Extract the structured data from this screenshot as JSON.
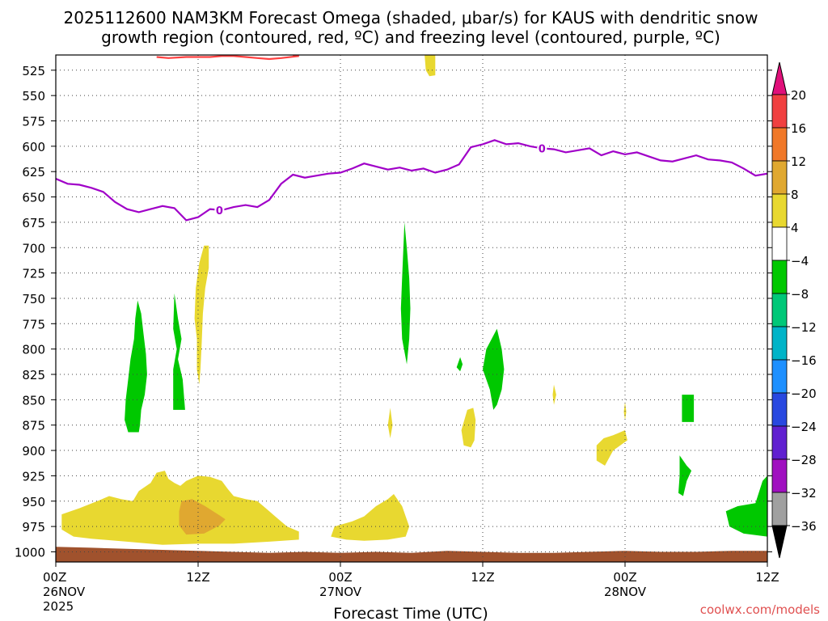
{
  "chart_data": {
    "type": "heatmap",
    "title_line1": "2025112600 NAM3KM Forecast Omega (shaded, μbar/s) for KAUS with dendritic snow",
    "title_line2": "growth region (contoured, red, ºC) and freezing level (contoured, purple, ºC)",
    "xlabel": "Forecast Time (UTC)",
    "credit": "coolwx.com/models",
    "xlim": [
      0,
      60
    ],
    "ylim": [
      510,
      1010
    ],
    "y_ticks": [
      525,
      550,
      575,
      600,
      625,
      650,
      675,
      700,
      725,
      750,
      775,
      800,
      825,
      850,
      875,
      900,
      925,
      950,
      975,
      1000
    ],
    "x_ticks": [
      {
        "x": 0,
        "lines": [
          "00Z",
          "26NOV",
          "2025"
        ]
      },
      {
        "x": 12,
        "lines": [
          "12Z"
        ]
      },
      {
        "x": 24,
        "lines": [
          "00Z",
          "27NOV"
        ]
      },
      {
        "x": 36,
        "lines": [
          "12Z"
        ]
      },
      {
        "x": 48,
        "lines": [
          "00Z",
          "28NOV"
        ]
      },
      {
        "x": 60,
        "lines": [
          "12Z"
        ]
      }
    ],
    "colorbar": {
      "labels": [
        "20",
        "16",
        "12",
        "8",
        "4",
        "−4",
        "−8",
        "−12",
        "−16",
        "−20",
        "−24",
        "−28",
        "−32",
        "−36"
      ],
      "bins": [
        {
          "range": "16 to 20",
          "color": "#f04040"
        },
        {
          "range": "12 to 16",
          "color": "#f07828"
        },
        {
          "range": "8 to 12",
          "color": "#e0a830"
        },
        {
          "range": "4 to 8",
          "color": "#e8d830"
        },
        {
          "range": "-4 to 4",
          "color": "#ffffff"
        },
        {
          "range": "-8 to -4",
          "color": "#00c800"
        },
        {
          "range": "-12 to -8",
          "color": "#00c878"
        },
        {
          "range": "-16 to -12",
          "color": "#00b4c8"
        },
        {
          "range": "-20 to -16",
          "color": "#1e90ff"
        },
        {
          "range": "-24 to -20",
          "color": "#2848e0"
        },
        {
          "range": "-28 to -24",
          "color": "#6020d0"
        },
        {
          "range": "-32 to -28",
          "color": "#a010c0"
        },
        {
          "range": "-36 to -32",
          "color": "#a0a0a0"
        }
      ],
      "over_color": "#e0107a",
      "under_color": "#000000"
    },
    "freezing_level": {
      "color": "#a000c8",
      "label": "0",
      "label_points": [
        [
          13.8,
          663
        ],
        [
          41.0,
          602
        ]
      ],
      "points": [
        [
          0,
          632
        ],
        [
          1,
          637
        ],
        [
          2,
          638
        ],
        [
          3,
          641
        ],
        [
          4,
          645
        ],
        [
          5,
          655
        ],
        [
          6,
          662
        ],
        [
          7,
          665
        ],
        [
          8,
          662
        ],
        [
          9,
          659
        ],
        [
          10,
          661
        ],
        [
          11,
          673
        ],
        [
          12,
          670
        ],
        [
          13,
          662
        ],
        [
          14,
          663
        ],
        [
          15,
          660
        ],
        [
          16,
          658
        ],
        [
          17,
          660
        ],
        [
          18,
          653
        ],
        [
          19,
          637
        ],
        [
          20,
          628
        ],
        [
          21,
          631
        ],
        [
          22,
          629
        ],
        [
          23,
          627
        ],
        [
          24,
          626
        ],
        [
          25,
          622
        ],
        [
          26,
          617
        ],
        [
          27,
          620
        ],
        [
          28,
          623
        ],
        [
          29,
          621
        ],
        [
          30,
          624
        ],
        [
          31,
          622
        ],
        [
          32,
          626
        ],
        [
          33,
          623
        ],
        [
          34,
          618
        ],
        [
          35,
          601
        ],
        [
          36,
          598
        ],
        [
          37,
          594
        ],
        [
          38,
          598
        ],
        [
          39,
          597
        ],
        [
          40,
          600
        ],
        [
          41,
          602
        ],
        [
          42,
          603
        ],
        [
          43,
          606
        ],
        [
          44,
          604
        ],
        [
          45,
          602
        ],
        [
          46,
          609
        ],
        [
          47,
          605
        ],
        [
          48,
          608
        ],
        [
          49,
          606
        ],
        [
          50,
          610
        ],
        [
          51,
          614
        ],
        [
          52,
          615
        ],
        [
          53,
          612
        ],
        [
          54,
          609
        ],
        [
          55,
          613
        ],
        [
          56,
          614
        ],
        [
          57,
          616
        ],
        [
          58,
          622
        ],
        [
          59,
          629
        ],
        [
          60,
          627
        ]
      ]
    },
    "dgz_contour": {
      "color": "#ff4040",
      "points": [
        [
          8.5,
          512
        ],
        [
          9.5,
          513
        ],
        [
          11,
          512
        ],
        [
          13,
          512
        ],
        [
          14,
          511
        ],
        [
          15,
          511
        ],
        [
          16,
          512
        ],
        [
          17,
          513
        ],
        [
          18,
          514
        ],
        [
          19,
          513
        ],
        [
          20.5,
          511
        ],
        [
          20,
          510
        ]
      ]
    },
    "omega_regions": [
      {
        "color": "#e8d830",
        "points": [
          [
            0.5,
            963
          ],
          [
            2,
            957
          ],
          [
            3.5,
            950
          ],
          [
            4.5,
            945
          ],
          [
            5.5,
            948
          ],
          [
            6.5,
            950
          ],
          [
            7,
            940
          ],
          [
            8,
            932
          ],
          [
            8.5,
            922
          ],
          [
            9.2,
            920
          ],
          [
            9.5,
            928
          ],
          [
            10,
            932
          ],
          [
            10.5,
            935
          ],
          [
            11,
            930
          ],
          [
            12,
            925
          ],
          [
            13,
            926
          ],
          [
            14,
            930
          ],
          [
            14.5,
            938
          ],
          [
            15,
            945
          ],
          [
            16,
            948
          ],
          [
            17,
            950
          ],
          [
            17.5,
            955
          ],
          [
            18,
            960
          ],
          [
            18.5,
            965
          ],
          [
            19.5,
            975
          ],
          [
            20.5,
            980
          ],
          [
            20.5,
            988
          ],
          [
            18,
            990
          ],
          [
            15,
            992
          ],
          [
            12,
            992
          ],
          [
            9,
            993
          ],
          [
            6,
            990
          ],
          [
            3,
            987
          ],
          [
            1.5,
            985
          ],
          [
            0.5,
            978
          ]
        ]
      },
      {
        "color": "#e0a830",
        "points": [
          [
            10.6,
            950
          ],
          [
            11.5,
            948
          ],
          [
            12.6,
            955
          ],
          [
            13.8,
            964
          ],
          [
            14.3,
            968
          ],
          [
            13.8,
            974
          ],
          [
            12.5,
            982
          ],
          [
            11,
            983
          ],
          [
            10.4,
            974
          ],
          [
            10.4,
            960
          ]
        ]
      },
      {
        "color": "#e8d830",
        "points": [
          [
            23.5,
            975
          ],
          [
            25,
            970
          ],
          [
            26,
            965
          ],
          [
            27,
            955
          ],
          [
            28,
            948
          ],
          [
            28.5,
            943
          ],
          [
            29.2,
            955
          ],
          [
            29.5,
            965
          ],
          [
            29.8,
            975
          ],
          [
            29.5,
            985
          ],
          [
            28,
            988
          ],
          [
            26,
            989
          ],
          [
            24.5,
            988
          ],
          [
            23.2,
            985
          ]
        ]
      },
      {
        "color": "#e8d830",
        "points": [
          [
            12.5,
            698
          ],
          [
            12.9,
            698
          ],
          [
            12.9,
            720
          ],
          [
            12.6,
            740
          ],
          [
            12.4,
            765
          ],
          [
            12.3,
            795
          ],
          [
            12.2,
            820
          ],
          [
            12.1,
            835
          ],
          [
            11.9,
            820
          ],
          [
            11.9,
            790
          ],
          [
            11.7,
            770
          ],
          [
            11.8,
            740
          ],
          [
            12.1,
            715
          ]
        ]
      },
      {
        "color": "#00c800",
        "points": [
          [
            6.9,
            752
          ],
          [
            7.2,
            765
          ],
          [
            7.4,
            785
          ],
          [
            7.6,
            805
          ],
          [
            7.7,
            825
          ],
          [
            7.5,
            845
          ],
          [
            7.2,
            860
          ],
          [
            7.1,
            875
          ],
          [
            7.0,
            882
          ],
          [
            6.1,
            882
          ],
          [
            5.8,
            870
          ],
          [
            5.9,
            850
          ],
          [
            6.1,
            830
          ],
          [
            6.3,
            810
          ],
          [
            6.6,
            790
          ],
          [
            6.7,
            770
          ]
        ]
      },
      {
        "color": "#00c800",
        "points": [
          [
            10.0,
            745
          ],
          [
            10.3,
            770
          ],
          [
            10.6,
            790
          ],
          [
            10.3,
            810
          ],
          [
            10.7,
            830
          ],
          [
            10.9,
            860
          ],
          [
            9.9,
            860
          ],
          [
            9.9,
            820
          ],
          [
            10.2,
            800
          ],
          [
            9.9,
            780
          ]
        ]
      },
      {
        "color": "#00c800",
        "points": [
          [
            29.4,
            675
          ],
          [
            29.6,
            700
          ],
          [
            29.8,
            730
          ],
          [
            29.9,
            760
          ],
          [
            29.8,
            790
          ],
          [
            29.6,
            815
          ],
          [
            29.2,
            790
          ],
          [
            29.1,
            760
          ],
          [
            29.2,
            730
          ]
        ]
      },
      {
        "color": "#00c800",
        "points": [
          [
            37.2,
            780
          ],
          [
            37.6,
            800
          ],
          [
            37.8,
            820
          ],
          [
            37.6,
            840
          ],
          [
            37.2,
            855
          ],
          [
            36.9,
            860
          ],
          [
            36.6,
            840
          ],
          [
            36.0,
            820
          ],
          [
            36.3,
            800
          ]
        ]
      },
      {
        "color": "#00c800",
        "points": [
          [
            34.1,
            808
          ],
          [
            34.3,
            815
          ],
          [
            34.1,
            822
          ],
          [
            33.8,
            818
          ]
        ]
      },
      {
        "color": "#00c800",
        "points": [
          [
            53.2,
            845
          ],
          [
            53.8,
            845
          ],
          [
            53.8,
            872
          ],
          [
            52.8,
            872
          ],
          [
            52.8,
            845
          ]
        ]
      },
      {
        "color": "#00c800",
        "points": [
          [
            52.6,
            905
          ],
          [
            53.2,
            915
          ],
          [
            53.6,
            920
          ],
          [
            53.2,
            930
          ],
          [
            52.9,
            945
          ],
          [
            52.5,
            942
          ],
          [
            52.6,
            925
          ]
        ]
      },
      {
        "color": "#00c800",
        "points": [
          [
            60,
            925
          ],
          [
            60,
            985
          ],
          [
            58,
            982
          ],
          [
            56.8,
            975
          ],
          [
            56.5,
            960
          ],
          [
            57.5,
            955
          ],
          [
            59,
            952
          ],
          [
            59.6,
            930
          ]
        ]
      },
      {
        "color": "#e8d830",
        "points": [
          [
            34.7,
            860
          ],
          [
            35.2,
            858
          ],
          [
            35.4,
            870
          ],
          [
            35.3,
            890
          ],
          [
            35.0,
            897
          ],
          [
            34.4,
            895
          ],
          [
            34.2,
            880
          ],
          [
            34.5,
            868
          ]
        ]
      },
      {
        "color": "#e8d830",
        "points": [
          [
            46.2,
            888
          ],
          [
            47,
            885
          ],
          [
            48,
            880
          ],
          [
            48.2,
            890
          ],
          [
            47,
            900
          ],
          [
            46.3,
            915
          ],
          [
            45.6,
            910
          ],
          [
            45.6,
            895
          ]
        ]
      },
      {
        "color": "#e8d830",
        "points": [
          [
            28.2,
            858
          ],
          [
            28.4,
            875
          ],
          [
            28.2,
            888
          ],
          [
            28.0,
            875
          ]
        ]
      },
      {
        "color": "#e8d830",
        "points": [
          [
            42.0,
            835
          ],
          [
            42.2,
            845
          ],
          [
            42.0,
            855
          ],
          [
            41.9,
            845
          ]
        ]
      },
      {
        "color": "#e8d830",
        "points": [
          [
            48,
            852
          ],
          [
            48.1,
            862
          ],
          [
            48,
            870
          ],
          [
            47.9,
            862
          ]
        ]
      },
      {
        "color": "#e8d830",
        "points": [
          [
            31.1,
            510
          ],
          [
            32.0,
            510
          ],
          [
            32.0,
            530
          ],
          [
            31.5,
            531
          ],
          [
            31.2,
            525
          ]
        ]
      }
    ],
    "surface_fill": {
      "color": "#a0522d",
      "points": [
        [
          0,
          995
        ],
        [
          3,
          996
        ],
        [
          6,
          997
        ],
        [
          9,
          998
        ],
        [
          12,
          999
        ],
        [
          15,
          1000
        ],
        [
          18,
          1001
        ],
        [
          21,
          1000
        ],
        [
          24,
          1001
        ],
        [
          27,
          1000
        ],
        [
          30,
          1001
        ],
        [
          33,
          999
        ],
        [
          36,
          1000
        ],
        [
          39,
          1001
        ],
        [
          42,
          1001
        ],
        [
          45,
          1000
        ],
        [
          48,
          999
        ],
        [
          51,
          1000
        ],
        [
          54,
          1000
        ],
        [
          57,
          999
        ],
        [
          60,
          999
        ]
      ]
    }
  }
}
